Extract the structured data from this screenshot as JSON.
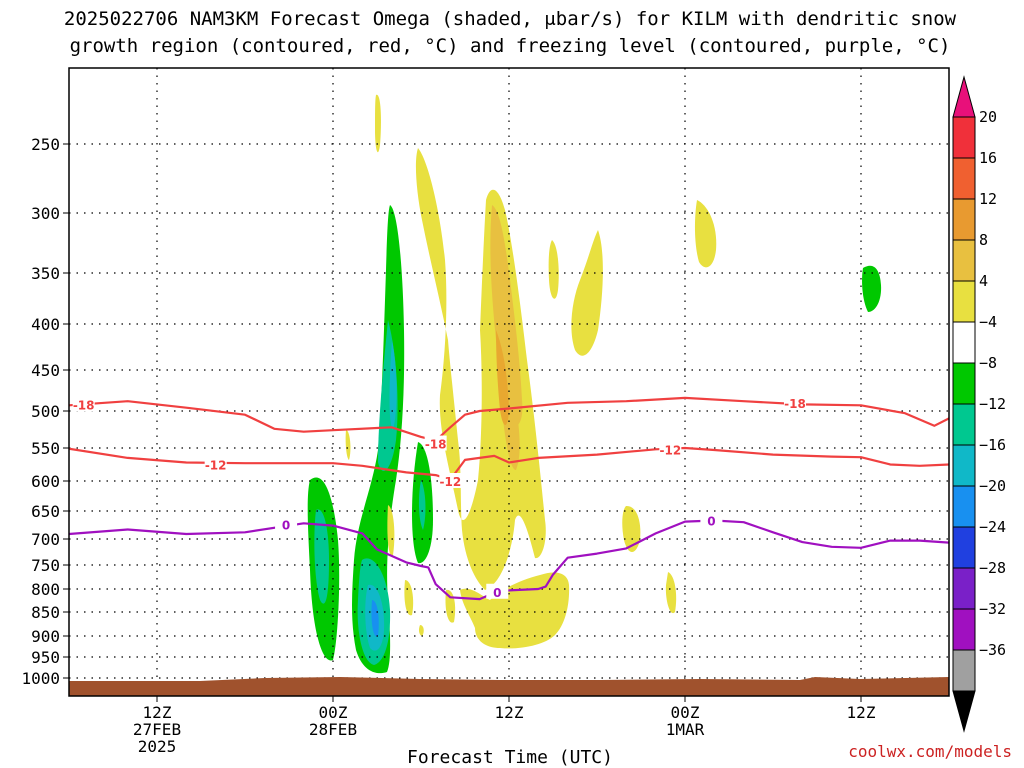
{
  "title_lines": [
    "2025022706 NAM3KM Forecast Omega (shaded, μbar/s) for KILM with dendritic snow",
    "growth region (contoured, red, °C) and freezing level (contoured, purple, °C)"
  ],
  "credit": "coolwx.com/models",
  "chart_data": {
    "type": "time-height cross section",
    "title": "2025022706 NAM3KM Forecast Omega (shaded, μbar/s) for KILM with dendritic snow growth region (contoured, red, °C) and freezing level (contoured, purple, °C)",
    "xlabel": "Forecast Time (UTC)",
    "x_unit": "hours since 2025-02-27 06Z",
    "xlim": [
      0,
      60
    ],
    "x_ticks": [
      {
        "x": 6,
        "lines": [
          "12Z",
          "27FEB",
          "2025"
        ]
      },
      {
        "x": 18,
        "lines": [
          "00Z",
          "28FEB"
        ]
      },
      {
        "x": 30,
        "lines": [
          "12Z"
        ]
      },
      {
        "x": 42,
        "lines": [
          "00Z",
          "1MAR"
        ]
      },
      {
        "x": 54,
        "lines": [
          "12Z"
        ]
      }
    ],
    "ylabel": "",
    "y_unit": "hPa",
    "ylim": [
      1025,
      200
    ],
    "y_ticks": [
      250,
      300,
      350,
      400,
      450,
      500,
      550,
      600,
      650,
      700,
      750,
      800,
      850,
      900,
      950,
      1000
    ],
    "grid": true,
    "colorbar": {
      "unit": "μbar/s",
      "labels": [
        "20",
        "16",
        "12",
        "8",
        "4",
        "−4",
        "−8",
        "−12",
        "−16",
        "−20",
        "−24",
        "−28",
        "−32",
        "−36"
      ],
      "bounds": [
        20,
        16,
        12,
        8,
        4,
        -4,
        -8,
        -12,
        -16,
        -20,
        -24,
        -28,
        -32,
        -36
      ],
      "colors": [
        "#f0303a",
        "#f06030",
        "#e89a30",
        "#e8c040",
        "#e8e040",
        "#ffffff",
        "#00c800",
        "#00c890",
        "#10b8c8",
        "#1890f0",
        "#2040e0",
        "#7a20c8",
        "#a010c0",
        "#a0a0a0"
      ],
      "top_color": "#e8107a",
      "bottom_color": "#000000"
    },
    "series": [
      {
        "name": "-18",
        "color": "#f04040",
        "points": [
          [
            0,
            493
          ],
          [
            4,
            488
          ],
          [
            8,
            496
          ],
          [
            12,
            505
          ],
          [
            14,
            524
          ],
          [
            16,
            528
          ],
          [
            18,
            526
          ],
          [
            22,
            522
          ],
          [
            24,
            535
          ],
          [
            25,
            540
          ],
          [
            26,
            522
          ],
          [
            27,
            505
          ],
          [
            28,
            500
          ],
          [
            30,
            497
          ],
          [
            34,
            490
          ],
          [
            38,
            488
          ],
          [
            42,
            484
          ],
          [
            46,
            488
          ],
          [
            50,
            492
          ],
          [
            54,
            493
          ],
          [
            57,
            503
          ],
          [
            59,
            520
          ],
          [
            60,
            510
          ]
        ],
        "labels": [
          {
            "x": 1,
            "y": 492
          },
          {
            "x": 25,
            "y": 544
          },
          {
            "x": 49.5,
            "y": 490
          }
        ]
      },
      {
        "name": "-12",
        "color": "#f04040",
        "points": [
          [
            0,
            551
          ],
          [
            4,
            565
          ],
          [
            8,
            572
          ],
          [
            12,
            573
          ],
          [
            16,
            573
          ],
          [
            18,
            573
          ],
          [
            20,
            577
          ],
          [
            23,
            587
          ],
          [
            25,
            591
          ],
          [
            26,
            598
          ],
          [
            27,
            568
          ],
          [
            29,
            562
          ],
          [
            30,
            572
          ],
          [
            32,
            565
          ],
          [
            36,
            560
          ],
          [
            40,
            552
          ],
          [
            42,
            550
          ],
          [
            44,
            553
          ],
          [
            48,
            560
          ],
          [
            52,
            563
          ],
          [
            54,
            564
          ],
          [
            56,
            575
          ],
          [
            58,
            577
          ],
          [
            60,
            575
          ]
        ],
        "labels": [
          {
            "x": 10,
            "y": 575
          },
          {
            "x": 26,
            "y": 600
          },
          {
            "x": 41,
            "y": 552
          }
        ]
      },
      {
        "name": "0",
        "color": "#a010c0",
        "points": [
          [
            0,
            691
          ],
          [
            4,
            683
          ],
          [
            8,
            691
          ],
          [
            12,
            688
          ],
          [
            16,
            672
          ],
          [
            18,
            676
          ],
          [
            20,
            690
          ],
          [
            21,
            720
          ],
          [
            23,
            745
          ],
          [
            24,
            752
          ],
          [
            24.5,
            755
          ],
          [
            25,
            790
          ],
          [
            26,
            818
          ],
          [
            28,
            822
          ],
          [
            29,
            808
          ],
          [
            30,
            803
          ],
          [
            32,
            800
          ],
          [
            32.5,
            795
          ],
          [
            33,
            770
          ],
          [
            34,
            736
          ],
          [
            36,
            728
          ],
          [
            38,
            718
          ],
          [
            40,
            690
          ],
          [
            42,
            669
          ],
          [
            44,
            667
          ],
          [
            46,
            670
          ],
          [
            48,
            688
          ],
          [
            50,
            706
          ],
          [
            52,
            715
          ],
          [
            54,
            717
          ],
          [
            56,
            703
          ],
          [
            58,
            703
          ],
          [
            60,
            707
          ]
        ],
        "labels": [
          {
            "x": 14.8,
            "y": 674
          },
          {
            "x": 29.2,
            "y": 806
          },
          {
            "x": 43.8,
            "y": 667
          }
        ]
      }
    ]
  }
}
